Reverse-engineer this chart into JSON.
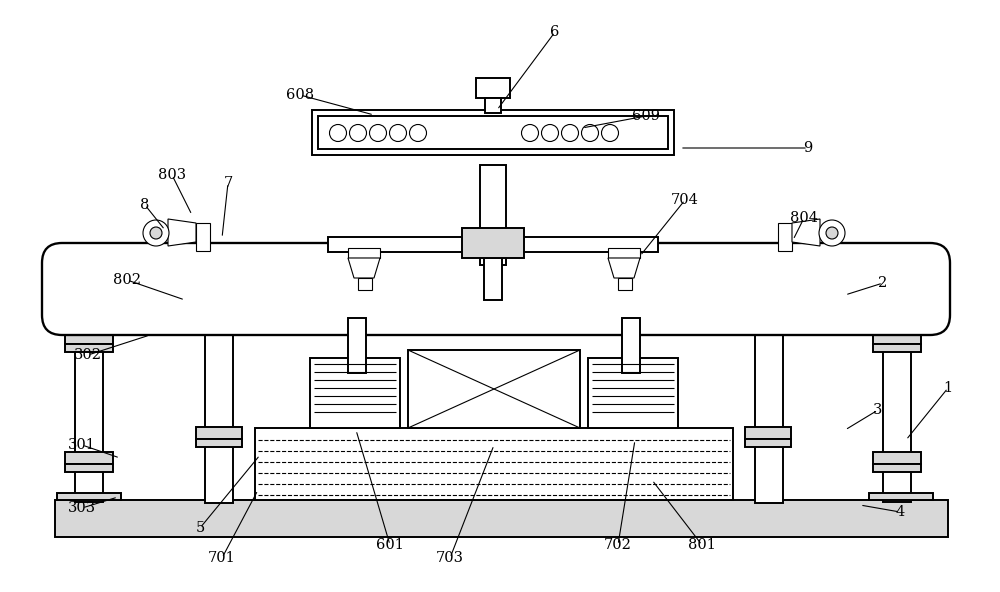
{
  "bg": "#ffffff",
  "lc": "#000000",
  "lw": 1.4,
  "tlw": 0.8,
  "fs": 10.5,
  "gray": "#b0b0b0",
  "lgray": "#d8d8d8"
}
